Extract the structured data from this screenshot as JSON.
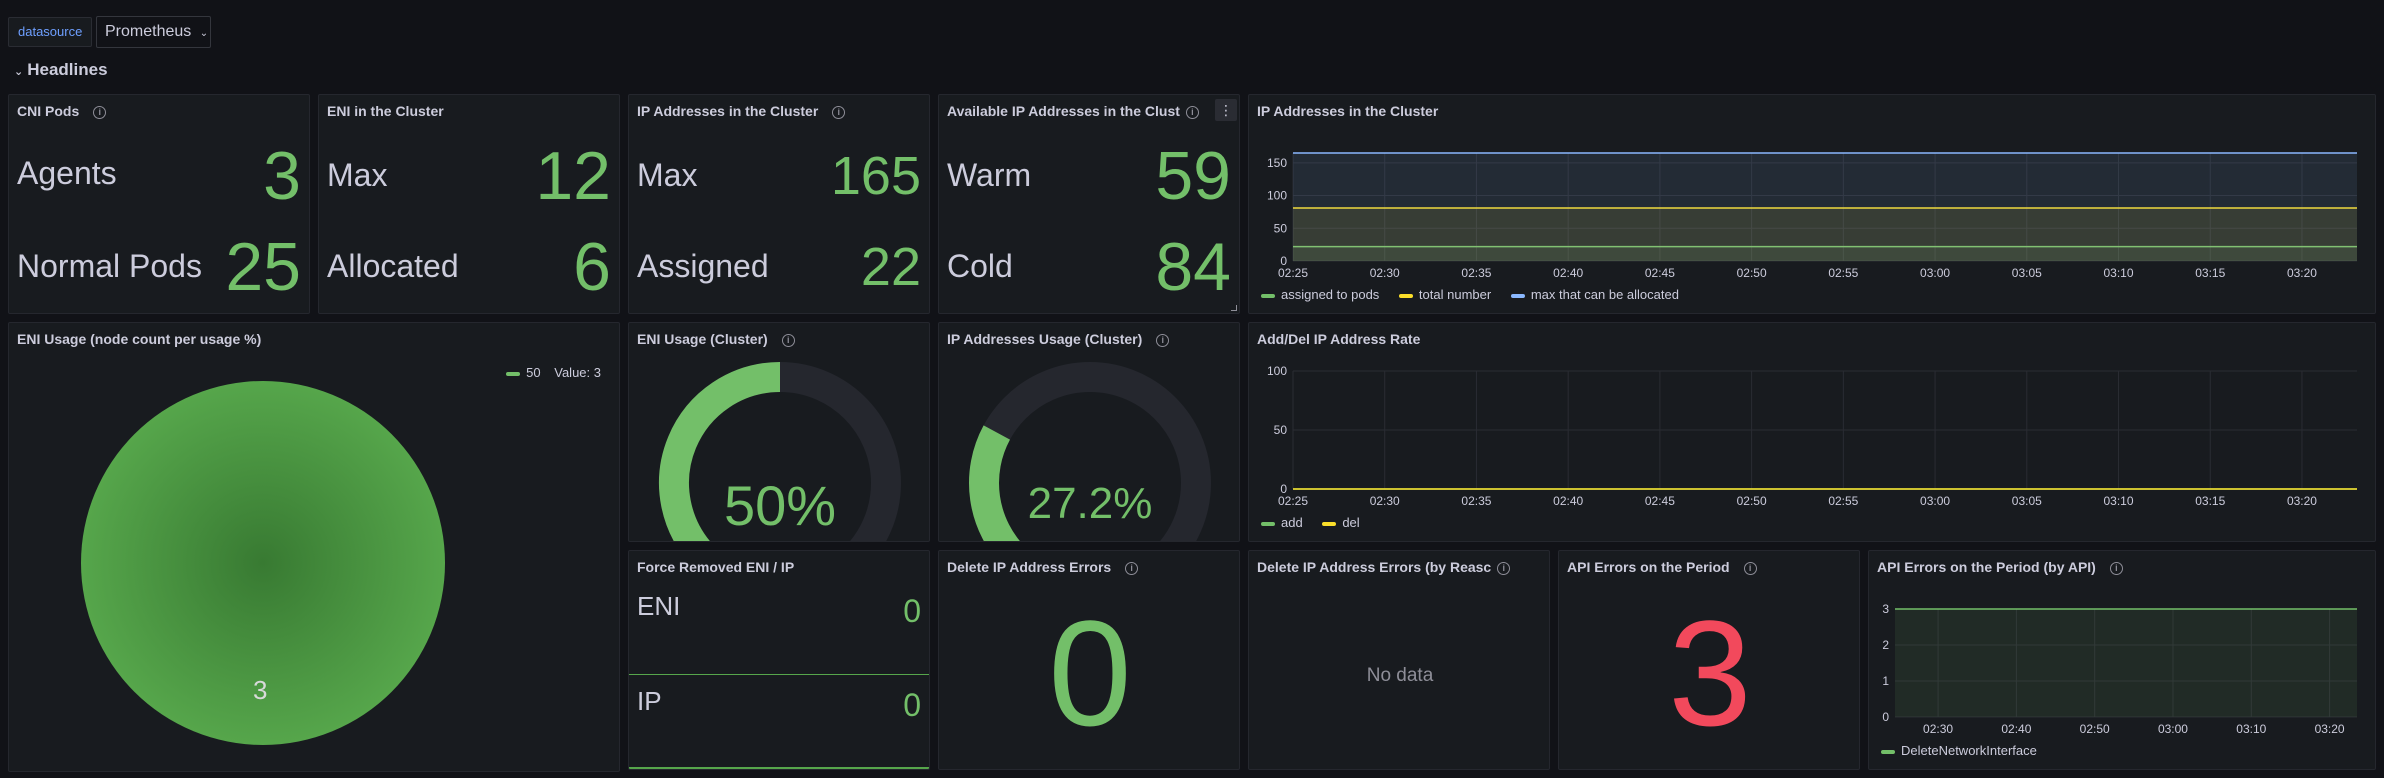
{
  "topbar": {
    "variable_label": "datasource",
    "variable_value": "Prometheus",
    "row_title": "Headlines"
  },
  "colors": {
    "green": "#73bf69",
    "yellow": "#fade2a",
    "blue": "#8ab8ff",
    "red": "#f2495c",
    "bg": "#181b1f"
  },
  "panels": {
    "cni_pods": {
      "title": "CNI Pods",
      "rows": [
        {
          "name": "Agents",
          "value": "3"
        },
        {
          "name": "Normal Pods",
          "value": "25"
        }
      ]
    },
    "eni_cluster": {
      "title": "ENI in the Cluster",
      "rows": [
        {
          "name": "Max",
          "value": "12"
        },
        {
          "name": "Allocated",
          "value": "6"
        }
      ]
    },
    "ip_cluster_stat": {
      "title": "IP Addresses in the Cluster",
      "rows": [
        {
          "name": "Max",
          "value": "165"
        },
        {
          "name": "Assigned",
          "value": "22"
        }
      ]
    },
    "available_ip": {
      "title": "Available IP Addresses in the Clust",
      "rows": [
        {
          "name": "Warm",
          "value": "59"
        },
        {
          "name": "Cold",
          "value": "84"
        }
      ]
    },
    "ip_cluster_chart": {
      "title": "IP Addresses in the Cluster",
      "legend": [
        {
          "name": "assigned to pods",
          "color": "#73bf69"
        },
        {
          "name": "total number",
          "color": "#fade2a"
        },
        {
          "name": "max that can be allocated",
          "color": "#8ab8ff"
        }
      ]
    },
    "eni_usage_nodes": {
      "title": "ENI Usage (node count per usage %)",
      "legend_label": "50",
      "legend_value": "Value: 3",
      "slice_label": "3"
    },
    "eni_usage_cluster": {
      "title": "ENI Usage (Cluster)",
      "value_text": "50%",
      "value": 50
    },
    "ip_usage_cluster": {
      "title": "IP Addresses Usage (Cluster)",
      "value_text": "27.2%",
      "value": 27.2
    },
    "add_del_rate": {
      "title": "Add/Del IP Address Rate",
      "legend": [
        {
          "name": "add",
          "color": "#73bf69"
        },
        {
          "name": "del",
          "color": "#fade2a"
        }
      ]
    },
    "force_removed": {
      "title": "Force Removed ENI / IP",
      "rows": [
        {
          "name": "ENI",
          "value": "0"
        },
        {
          "name": "IP",
          "value": "0"
        }
      ]
    },
    "delete_ip_errors": {
      "title": "Delete IP Address Errors",
      "value": "0"
    },
    "delete_ip_errors_reason": {
      "title": "Delete IP Address Errors (by Reasc",
      "no_data": "No data"
    },
    "api_errors": {
      "title": "API Errors on the Period",
      "value": "3"
    },
    "api_errors_by_api": {
      "title": "API Errors on the Period (by API)",
      "legend": [
        {
          "name": "DeleteNetworkInterface",
          "color": "#73bf69"
        }
      ]
    }
  },
  "chart_data": [
    {
      "id": "ip_cluster_chart",
      "type": "area",
      "x": [
        "02:25",
        "02:30",
        "02:35",
        "02:40",
        "02:45",
        "02:50",
        "02:55",
        "03:00",
        "03:05",
        "03:10",
        "03:15",
        "03:20"
      ],
      "ylim": [
        0,
        165
      ],
      "yticks": [
        "0",
        "50",
        "100",
        "150"
      ],
      "series": [
        {
          "name": "assigned to pods",
          "values": [
            22,
            22,
            22,
            22,
            22,
            22,
            22,
            22,
            22,
            22,
            22,
            22
          ]
        },
        {
          "name": "total number",
          "values": [
            81,
            81,
            81,
            81,
            81,
            81,
            81,
            81,
            81,
            81,
            81,
            81
          ]
        },
        {
          "name": "max that can be allocated",
          "values": [
            165,
            165,
            165,
            165,
            165,
            165,
            165,
            165,
            165,
            165,
            165,
            165
          ]
        }
      ]
    },
    {
      "id": "add_del_rate",
      "type": "line",
      "x": [
        "02:25",
        "02:30",
        "02:35",
        "02:40",
        "02:45",
        "02:50",
        "02:55",
        "03:00",
        "03:05",
        "03:10",
        "03:15",
        "03:20"
      ],
      "ylim": [
        0,
        100
      ],
      "yticks": [
        "0",
        "50",
        "100"
      ],
      "series": [
        {
          "name": "add",
          "values": [
            0,
            0,
            0,
            0,
            0,
            0,
            0,
            0,
            0,
            0,
            0,
            0
          ]
        },
        {
          "name": "del",
          "values": [
            0,
            0,
            0,
            0,
            0,
            0,
            0,
            0,
            0,
            0,
            0,
            0
          ]
        }
      ]
    },
    {
      "id": "api_errors_by_api",
      "type": "area",
      "x": [
        "02:30",
        "02:40",
        "02:50",
        "03:00",
        "03:10",
        "03:20"
      ],
      "ylim": [
        0,
        3
      ],
      "yticks": [
        "0",
        "1",
        "2",
        "3"
      ],
      "series": [
        {
          "name": "DeleteNetworkInterface",
          "values": [
            3,
            3,
            3,
            3,
            3,
            3
          ]
        }
      ]
    }
  ]
}
